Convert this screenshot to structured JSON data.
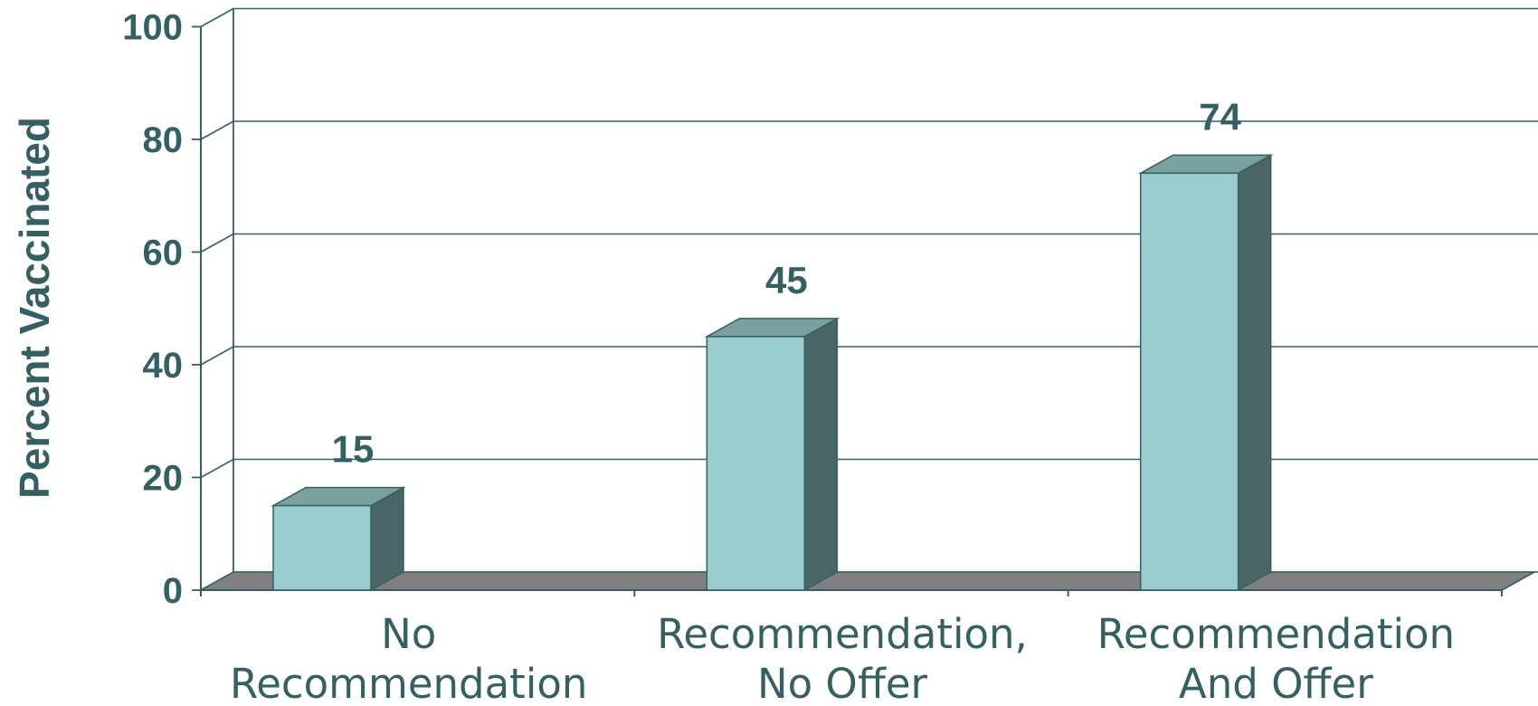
{
  "chart_data": {
    "type": "bar",
    "style": "3d-column",
    "ylabel": "Percent Vaccinated",
    "ylim": [
      0,
      100
    ],
    "yticks": [
      "0",
      "20",
      "40",
      "60",
      "80",
      "100"
    ],
    "categories": [
      [
        "No",
        "Recommendation"
      ],
      [
        "Recommendation,",
        "No Offer"
      ],
      [
        "Recommendation",
        "And Offer"
      ]
    ],
    "values": [
      15,
      45,
      74
    ],
    "data_labels": [
      "15",
      "45",
      "74"
    ],
    "grid": true,
    "colors": {
      "bar_front": "#99cccc",
      "bar_top": "#7aa0a0",
      "bar_side": "#4a6666",
      "floor": "#808080",
      "text": "#346064",
      "lines": "#346064"
    }
  }
}
